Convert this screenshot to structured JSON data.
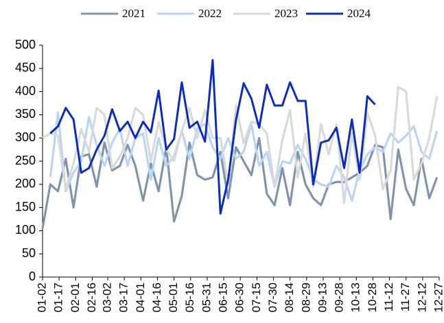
{
  "chart_data": {
    "type": "line",
    "x": [
      2,
      9,
      16,
      23,
      30,
      37,
      44,
      51,
      58,
      65,
      72,
      79,
      86,
      93,
      100,
      107,
      114,
      121,
      128,
      135,
      142,
      149,
      156,
      163,
      170,
      177,
      184,
      191,
      198,
      205,
      212,
      219,
      226,
      233,
      240,
      247,
      254,
      261,
      268,
      275,
      282,
      289,
      296,
      303,
      310,
      317,
      324,
      331,
      338,
      345,
      352,
      359
    ],
    "xlim": [
      2,
      361
    ],
    "xticks": [
      {
        "value": 2,
        "label": "01-02"
      },
      {
        "value": 17,
        "label": "01-17"
      },
      {
        "value": 32,
        "label": "02-01"
      },
      {
        "value": 47,
        "label": "02-16"
      },
      {
        "value": 61,
        "label": "03-02"
      },
      {
        "value": 76,
        "label": "03-17"
      },
      {
        "value": 91,
        "label": "04-01"
      },
      {
        "value": 106,
        "label": "04-16"
      },
      {
        "value": 121,
        "label": "05-01"
      },
      {
        "value": 136,
        "label": "05-16"
      },
      {
        "value": 151,
        "label": "05-31"
      },
      {
        "value": 166,
        "label": "06-15"
      },
      {
        "value": 181,
        "label": "06-30"
      },
      {
        "value": 196,
        "label": "07-15"
      },
      {
        "value": 211,
        "label": "07-30"
      },
      {
        "value": 226,
        "label": "08-14"
      },
      {
        "value": 241,
        "label": "08-29"
      },
      {
        "value": 256,
        "label": "09-13"
      },
      {
        "value": 271,
        "label": "09-28"
      },
      {
        "value": 286,
        "label": "10-13"
      },
      {
        "value": 301,
        "label": "10-28"
      },
      {
        "value": 316,
        "label": "11-12"
      },
      {
        "value": 331,
        "label": "11-27"
      },
      {
        "value": 346,
        "label": "12-12"
      },
      {
        "value": 361,
        "label": "12-27"
      }
    ],
    "ylim": [
      0,
      500
    ],
    "yticks": [
      0,
      50,
      100,
      150,
      200,
      250,
      300,
      350,
      400,
      450,
      500
    ],
    "series": [
      {
        "name": "2021",
        "color": "#8094ae",
        "values": [
          105,
          200,
          185,
          255,
          150,
          260,
          265,
          195,
          290,
          230,
          240,
          285,
          240,
          165,
          245,
          185,
          280,
          120,
          175,
          290,
          220,
          210,
          215,
          270,
          170,
          280,
          250,
          220,
          300,
          180,
          155,
          235,
          155,
          270,
          200,
          170,
          155,
          200,
          205,
          205,
          215,
          225,
          240,
          285,
          280,
          125,
          275,
          190,
          155,
          255,
          170,
          215
        ]
      },
      {
        "name": "2022",
        "color": "#b7d5f5",
        "values": [
          null,
          215,
          355,
          185,
          225,
          250,
          345,
          285,
          240,
          290,
          320,
          240,
          300,
          310,
          210,
          300,
          240,
          260,
          315,
          255,
          320,
          330,
          280,
          255,
          300,
          255,
          270,
          330,
          240,
          270,
          195,
          250,
          245,
          285,
          255,
          210,
          200,
          195,
          240,
          215,
          165,
          230,
          265,
          280,
          270,
          310,
          290,
          305,
          325,
          270,
          255,
          315
        ]
      },
      {
        "name": "2023",
        "color": "#d9d9d9",
        "values": [
          300,
          310,
          305,
          190,
          245,
          320,
          270,
          365,
          350,
          235,
          260,
          300,
          365,
          350,
          250,
          335,
          275,
          250,
          315,
          365,
          300,
          360,
          300,
          300,
          200,
          370,
          290,
          335,
          330,
          310,
          195,
          295,
          360,
          215,
          310,
          195,
          330,
          265,
          330,
          160,
          310,
          210,
          355,
          305,
          190,
          230,
          410,
          400,
          210,
          245,
          300,
          390
        ]
      },
      {
        "name": "2024",
        "color": "#0a2dbf",
        "values": [
          null,
          310,
          325,
          365,
          340,
          225,
          235,
          275,
          305,
          362,
          315,
          335,
          300,
          335,
          312,
          402,
          275,
          298,
          420,
          322,
          335,
          292,
          468,
          137,
          210,
          338,
          418,
          385,
          322,
          415,
          370,
          370,
          420,
          380,
          380,
          200,
          290,
          295,
          322,
          235,
          340,
          225,
          390,
          372,
          null,
          null,
          null,
          null,
          null,
          null,
          null,
          null
        ]
      }
    ]
  }
}
